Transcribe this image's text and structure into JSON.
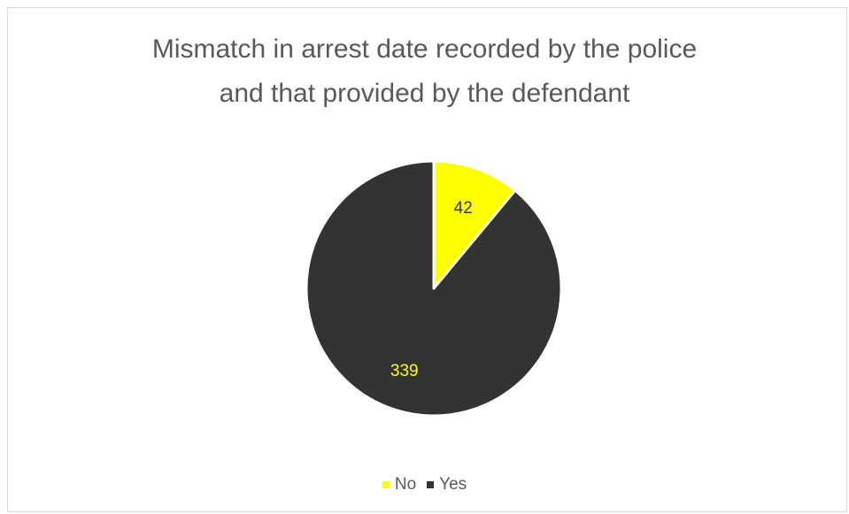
{
  "chart_data": {
    "type": "pie",
    "title_lines": [
      "Mismatch in arrest date recorded by the police",
      "and that provided by the defendant"
    ],
    "categories": [
      "No",
      "Yes"
    ],
    "values": [
      42,
      339
    ],
    "colors": [
      "#ffff00",
      "#333333"
    ],
    "label_colors": [
      "#333333",
      "#ffff00"
    ],
    "legend_position": "bottom"
  }
}
